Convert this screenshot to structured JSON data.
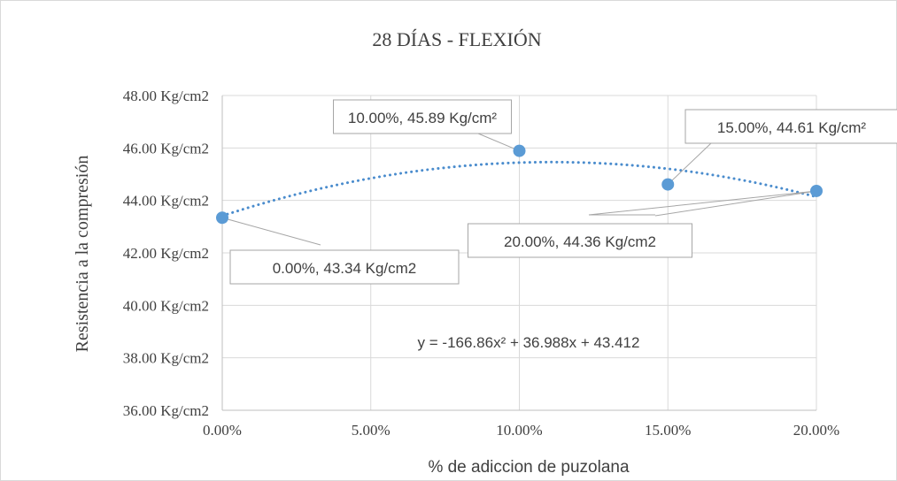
{
  "chart_data": {
    "type": "scatter",
    "title": "28 DÍAS - FLEXIÓN",
    "xlabel": "% de adiccion de puzolana",
    "ylabel": "Resistencia a la compresión",
    "xlim": [
      0,
      0.2
    ],
    "ylim": [
      36,
      48
    ],
    "x_ticks": [
      0,
      0.05,
      0.1,
      0.15,
      0.2
    ],
    "x_tick_labels": [
      "0.00%",
      "5.00%",
      "10.00%",
      "15.00%",
      "20.00%"
    ],
    "y_ticks": [
      36,
      38,
      40,
      42,
      44,
      46,
      48
    ],
    "y_tick_labels": [
      "36.00 Kg/cm2",
      "38.00 Kg/cm2",
      "40.00 Kg/cm2",
      "42.00 Kg/cm2",
      "44.00 Kg/cm2",
      "46.00 Kg/cm2",
      "48.00 Kg/cm2"
    ],
    "grid": true,
    "series": [
      {
        "x": [
          0,
          0.1,
          0.15,
          0.2
        ],
        "y": [
          43.34,
          45.89,
          44.61,
          44.36
        ],
        "data_labels": [
          "0.00%, 43.34 Kg/cm2",
          "10.00%, 45.89 Kg/cm²",
          "15.00%, 44.61 Kg/cm²",
          "20.00%, 44.36 Kg/cm2"
        ]
      }
    ],
    "trendline": {
      "type": "polynomial",
      "order": 2,
      "coefficients": [
        -166.86,
        36.988,
        43.412
      ],
      "equation": "y = -166.86x² + 36.988x + 43.412"
    },
    "colors": {
      "marker": "#5b9bd5",
      "trendline": "#4a8ccd",
      "grid": "#d9d9d9",
      "axis": "#bfbfbf",
      "callout_border": "#a6a6a6",
      "text": "#404040"
    }
  }
}
